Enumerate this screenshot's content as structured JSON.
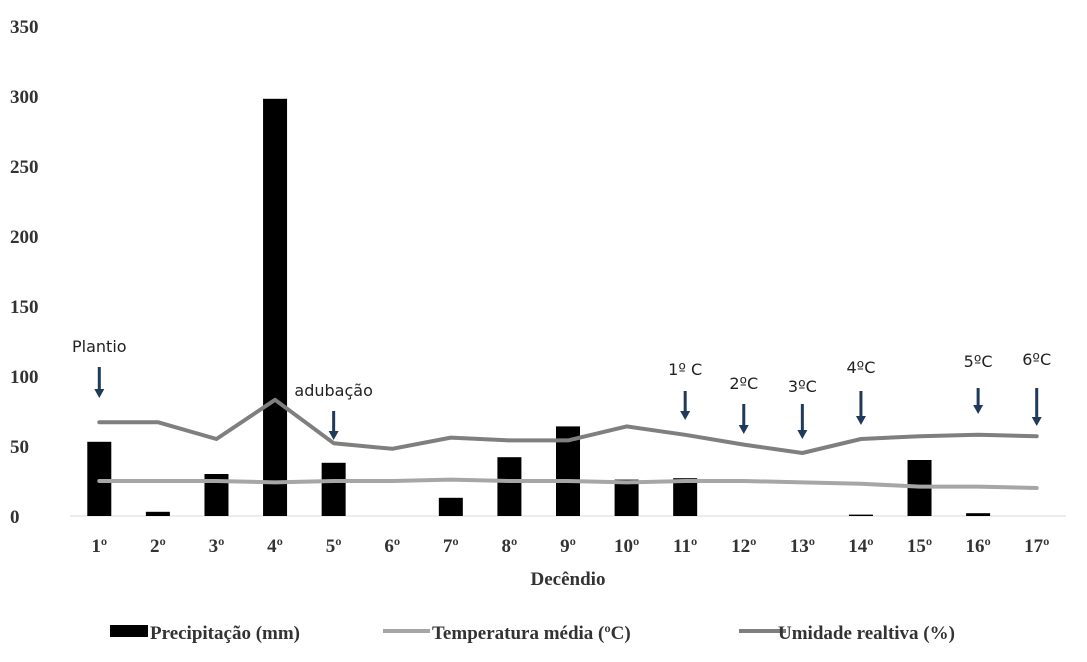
{
  "chart_data": {
    "type": "bar",
    "title": "",
    "xlabel": "Decêndio",
    "ylabel": "",
    "ylim": [
      0,
      350
    ],
    "yticks": [
      "0",
      "50",
      "100",
      "150",
      "200",
      "250",
      "300",
      "350"
    ],
    "categories": [
      "1º",
      "2º",
      "3º",
      "4º",
      "5º",
      "6º",
      "7º",
      "8º",
      "9º",
      "10º",
      "11º",
      "12º",
      "13º",
      "14º",
      "15º",
      "16º",
      "17º"
    ],
    "grid": false,
    "legend_position": "bottom",
    "series": [
      {
        "name": "Precipitação (mm)",
        "kind": "bar",
        "color": "#000000",
        "values": [
          53,
          3,
          30,
          298,
          38,
          0,
          13,
          42,
          64,
          26,
          27,
          0,
          0,
          1,
          40,
          2,
          0
        ]
      },
      {
        "name": "Temperatura média (ºC)",
        "kind": "line",
        "color": "#a6a6a6",
        "values": [
          25,
          25,
          25,
          24,
          25,
          25,
          26,
          25,
          25,
          24,
          25,
          25,
          24,
          23,
          21,
          21,
          20
        ]
      },
      {
        "name": "Umidade realtiva (%)",
        "kind": "line",
        "color": "#7f7f7f",
        "values": [
          67,
          67,
          55,
          83,
          52,
          48,
          56,
          54,
          54,
          64,
          58,
          51,
          45,
          55,
          57,
          58,
          57
        ]
      }
    ],
    "annotations": [
      {
        "text": "Plantio",
        "category": 0
      },
      {
        "text": "adubação",
        "category": 4
      },
      {
        "text": "1º C",
        "category": 10
      },
      {
        "text": "2ºC",
        "category": 11
      },
      {
        "text": "3ºC",
        "category": 12
      },
      {
        "text": "4ºC",
        "category": 13
      },
      {
        "text": "5ºC",
        "category": 15
      },
      {
        "text": "6ºC",
        "category": 16
      }
    ],
    "arrow_color": "#1f3a5a"
  }
}
